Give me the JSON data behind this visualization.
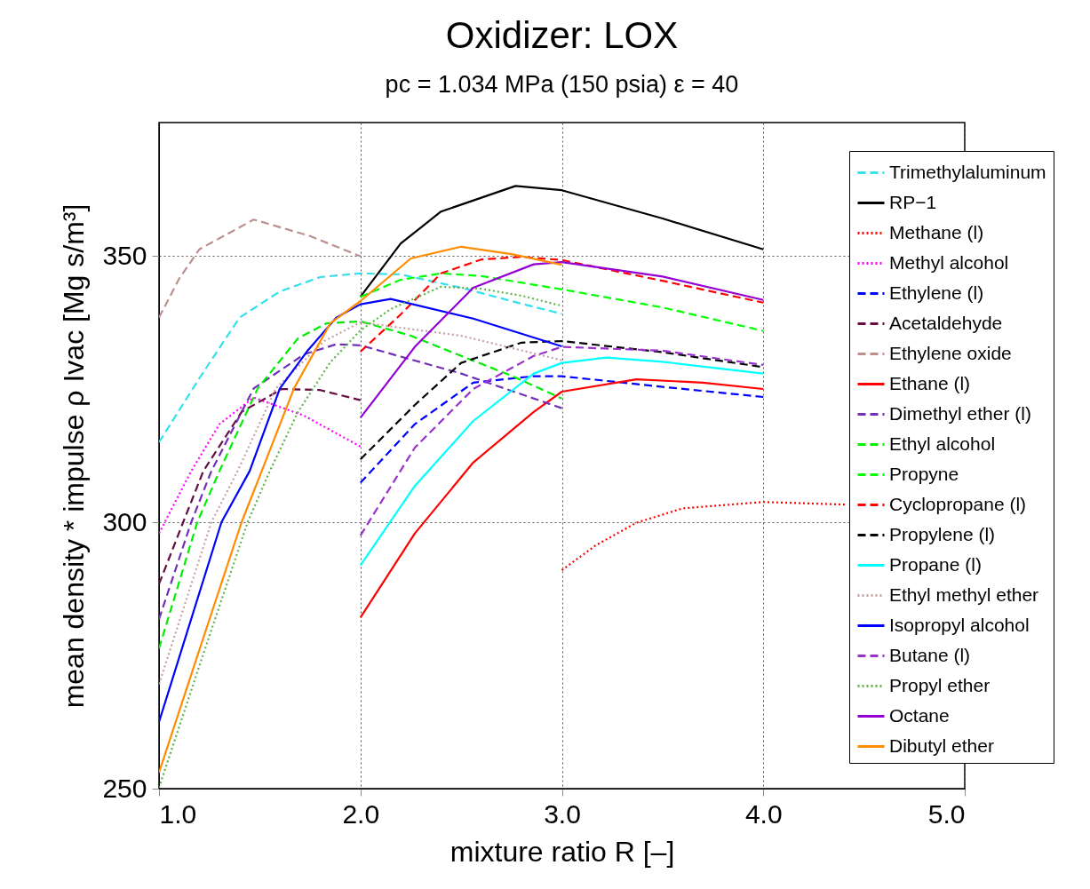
{
  "chart_data": {
    "type": "line",
    "title": "Oxidizer: LOX",
    "subtitle": "pc = 1.034 MPa (150 psia)    ε = 40",
    "xlabel": "mixture ratio R [–]",
    "ylabel": "mean density * impulse ρ Ivac [Mg s/m³]",
    "xlim": [
      1,
      5
    ],
    "xticks": [
      {
        "value": 1,
        "label": "1.0"
      },
      {
        "value": 2,
        "label": "2.0"
      },
      {
        "value": 3,
        "label": "3.0"
      },
      {
        "value": 4,
        "label": "4.0"
      },
      {
        "value": 5,
        "label": "5.0"
      }
    ],
    "ylim": [
      250,
      375
    ],
    "yticks": [
      250,
      300,
      350
    ],
    "grid": true,
    "legend": "right",
    "marker": "none",
    "series": [
      {
        "name": "Trimethylaluminum",
        "color": "#33e0ee",
        "line_style": "dashed",
        "x": [
          1,
          1.2,
          1.4,
          1.6,
          1.8,
          2,
          2.2,
          2.5,
          2.8,
          3
        ],
        "values": [
          315,
          327,
          338.4,
          343.3,
          346,
          346.7,
          346.5,
          344,
          341,
          339.1
        ]
      },
      {
        "name": "RP−1",
        "color": "#000000",
        "line_style": "solid",
        "x": [
          2,
          2.2,
          2.4,
          2.77,
          3,
          3.5,
          4
        ],
        "values": [
          342.3,
          352.3,
          358.3,
          363.1,
          362.3,
          357,
          351.2
        ]
      },
      {
        "name": "Methane (l)",
        "color": "#ff0000",
        "line_style": "dotted",
        "x": [
          3,
          3.17,
          3.37,
          3.6,
          4,
          4.41
        ],
        "values": [
          291,
          295.7,
          299.9,
          302.6,
          303.8,
          303.3
        ]
      },
      {
        "name": "Methyl alcohol",
        "color": "#ff00ff",
        "line_style": "dotted",
        "x": [
          1,
          1.16,
          1.3,
          1.47,
          1.72,
          2
        ],
        "values": [
          297.9,
          309.6,
          318.4,
          323.4,
          320,
          314.2
        ]
      },
      {
        "name": "Ethylene (l)",
        "color": "#0000ff",
        "line_style": "dashed",
        "x": [
          2,
          2.27,
          2.56,
          2.86,
          3,
          3.5,
          4
        ],
        "values": [
          307.4,
          318.4,
          326.2,
          327.4,
          327.4,
          325.4,
          323.5
        ]
      },
      {
        "name": "Acetaldehyde",
        "color": "#650d41",
        "line_style": "dashed",
        "x": [
          1,
          1.12,
          1.22,
          1.41,
          1.61,
          1.8,
          2
        ],
        "values": [
          288.4,
          300,
          309.6,
          320.7,
          325,
          324.8,
          322.9
        ]
      },
      {
        "name": "Ethylene oxide",
        "color": "#bc8f8f",
        "line_style": "dashed",
        "x": [
          1,
          1.1,
          1.2,
          1.47,
          1.75,
          2
        ],
        "values": [
          338.4,
          345.7,
          351.2,
          356.8,
          353.7,
          349.9
        ]
      },
      {
        "name": "Ethane (l)",
        "color": "#ff0000",
        "line_style": "solid",
        "x": [
          2,
          2.27,
          2.56,
          2.86,
          3,
          3.37,
          3.7,
          4
        ],
        "values": [
          282.1,
          297.9,
          311.2,
          320.7,
          324.5,
          326.8,
          326.2,
          325
        ]
      },
      {
        "name": "Dimethyl ether (l)",
        "color": "#7030b8",
        "line_style": "dashed",
        "x": [
          1,
          1.16,
          1.26,
          1.47,
          1.72,
          1.88,
          2,
          2.5,
          3
        ],
        "values": [
          281.8,
          300,
          309.6,
          325.1,
          331.5,
          333.4,
          333.2,
          327.9,
          321.4
        ]
      },
      {
        "name": "Ethyl alcohol",
        "color": "#00ee00",
        "line_style": "dashed",
        "x": [
          1,
          1.19,
          1.3,
          1.49,
          1.69,
          1.83,
          2,
          2.25,
          2.5,
          2.75,
          3
        ],
        "values": [
          276.3,
          300,
          309.6,
          325.1,
          334.5,
          337.3,
          337.7,
          335,
          331.2,
          327.5,
          323.2
        ]
      },
      {
        "name": "Propyne",
        "color": "#00ff00",
        "line_style": "dashed",
        "x": [
          2,
          2.2,
          2.4,
          2.6,
          3,
          3.5,
          4
        ],
        "values": [
          342.3,
          345.5,
          346.7,
          346.2,
          343.7,
          340.3,
          335.9
        ]
      },
      {
        "name": "Cyclopropane (l)",
        "color": "#ff0000",
        "line_style": "dashed",
        "x": [
          2,
          2.2,
          2.4,
          2.6,
          2.8,
          3,
          3.5,
          4
        ],
        "values": [
          332,
          339,
          346.7,
          349.3,
          349.8,
          349.2,
          345.3,
          341.2
        ]
      },
      {
        "name": "Propylene (l)",
        "color": "#000000",
        "line_style": "dashed",
        "x": [
          2,
          2.27,
          2.5,
          2.8,
          3,
          3.5,
          4
        ],
        "values": [
          311.8,
          322,
          329.9,
          333.7,
          334,
          331.9,
          329.1
        ]
      },
      {
        "name": "Propane (l)",
        "color": "#00ffff",
        "line_style": "solid",
        "x": [
          2,
          2.27,
          2.56,
          2.86,
          3,
          3.22,
          3.5,
          4
        ],
        "values": [
          291.9,
          306.8,
          319,
          327.9,
          329.9,
          330.9,
          330.1,
          327.9
        ]
      },
      {
        "name": "Ethyl methyl ether",
        "color": "#c8a0a0",
        "line_style": "dotted",
        "x": [
          1,
          1.26,
          1.39,
          1.58,
          1.82,
          2,
          2.5,
          3
        ],
        "values": [
          269.6,
          300,
          309.6,
          325.1,
          334,
          337.5,
          335,
          330.4
        ]
      },
      {
        "name": "Isopropyl alcohol",
        "color": "#0000ff",
        "line_style": "solid",
        "x": [
          1,
          1.31,
          1.45,
          1.6,
          1.74,
          1.88,
          2,
          2.15,
          2.56,
          3
        ],
        "values": [
          262.5,
          300,
          309.6,
          325.1,
          332.3,
          338.4,
          340.9,
          341.9,
          338.2,
          333
        ]
      },
      {
        "name": "Butane (l)",
        "color": "#9932cc",
        "line_style": "dashed",
        "x": [
          2,
          2.27,
          2.56,
          2.86,
          3,
          3.5,
          4
        ],
        "values": [
          297.5,
          314,
          325,
          331.2,
          332.9,
          332.2,
          329.5
        ]
      },
      {
        "name": "Propyl ether",
        "color": "#5cb548",
        "line_style": "dotted",
        "x": [
          1,
          1.2,
          1.44,
          1.55,
          1.69,
          1.85,
          2,
          2.15,
          2.4,
          2.6,
          2.8,
          3
        ],
        "values": [
          250.2,
          273,
          300,
          309.6,
          320.7,
          330,
          336,
          340,
          344.2,
          343.8,
          342.5,
          340.6
        ]
      },
      {
        "name": "Octane",
        "color": "#9400d3",
        "line_style": "solid",
        "x": [
          2,
          2.27,
          2.56,
          2.86,
          3,
          3.5,
          4
        ],
        "values": [
          319.6,
          332.9,
          344,
          348.4,
          348.8,
          346.1,
          341.7
        ]
      },
      {
        "name": "Dibutyl ether",
        "color": "#ff8c00",
        "line_style": "solid",
        "x": [
          1,
          1.2,
          1.41,
          1.51,
          1.67,
          1.85,
          2,
          2.25,
          2.5,
          2.75,
          3
        ],
        "values": [
          253,
          276,
          300,
          309.6,
          325.1,
          337.3,
          341.5,
          349.5,
          351.7,
          350.3,
          348.3
        ]
      }
    ]
  }
}
